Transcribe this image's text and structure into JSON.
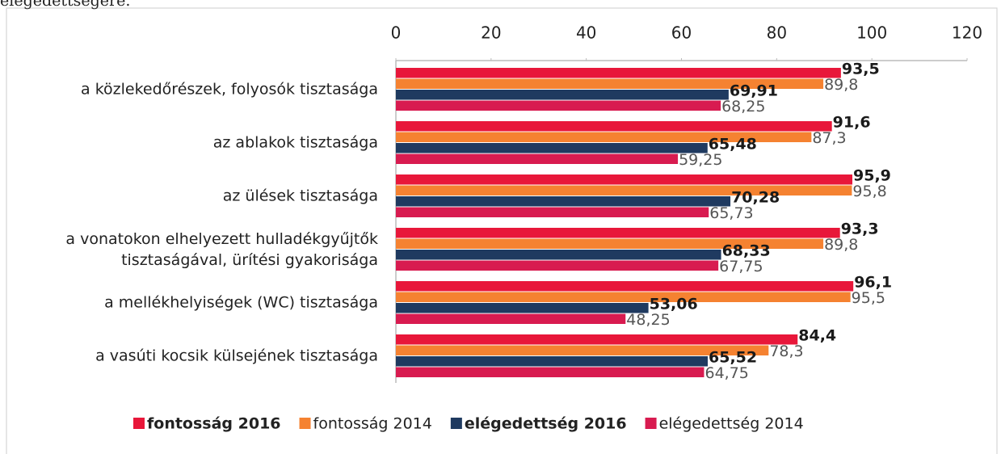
{
  "caption": "elégedettségére.",
  "chart_data": {
    "type": "hbar",
    "categories": [
      "a közlekedőrészek, folyosók tisztasága",
      "az ablakok tisztasága",
      "az ülések tisztasága",
      "a vonatokon elhelyezett hulladékgyűjtők\ntisztaságával, ürítési gyakorisága",
      "a mellékhelyiségek (WC) tisztasága",
      "a vasúti kocsik külsejének tisztasága"
    ],
    "series": [
      {
        "name": "fontosság 2016",
        "color": "#e8173a",
        "bold": true,
        "values": [
          93.5,
          91.6,
          95.9,
          93.3,
          96.1,
          84.4
        ],
        "value_labels": [
          "93,5",
          "91,6",
          "95,9",
          "93,3",
          "96,1",
          "84,4"
        ]
      },
      {
        "name": "fontosság 2014",
        "color": "#f58231",
        "bold": false,
        "values": [
          89.8,
          87.3,
          95.8,
          89.8,
          95.5,
          78.3
        ],
        "value_labels": [
          "89,8",
          "87,3",
          "95,8",
          "89,8",
          "95,5",
          "78,3"
        ]
      },
      {
        "name": "elégedettség 2016",
        "color": "#1f3a60",
        "bold": true,
        "values": [
          69.91,
          65.48,
          70.28,
          68.33,
          53.06,
          65.52
        ],
        "value_labels": [
          "69,91",
          "65,48",
          "70,28",
          "68,33",
          "53,06",
          "65,52"
        ]
      },
      {
        "name": "elégedettség 2014",
        "color": "#d81b50",
        "bold": false,
        "values": [
          68.25,
          59.25,
          65.73,
          67.75,
          48.25,
          64.75
        ],
        "value_labels": [
          "68,25",
          "59,25",
          "65,73",
          "67,75",
          "48,25",
          "64,75"
        ]
      }
    ],
    "xlim": [
      0,
      120
    ],
    "xticks": [
      0,
      20,
      40,
      60,
      80,
      100,
      120
    ],
    "legend": "bottom"
  }
}
